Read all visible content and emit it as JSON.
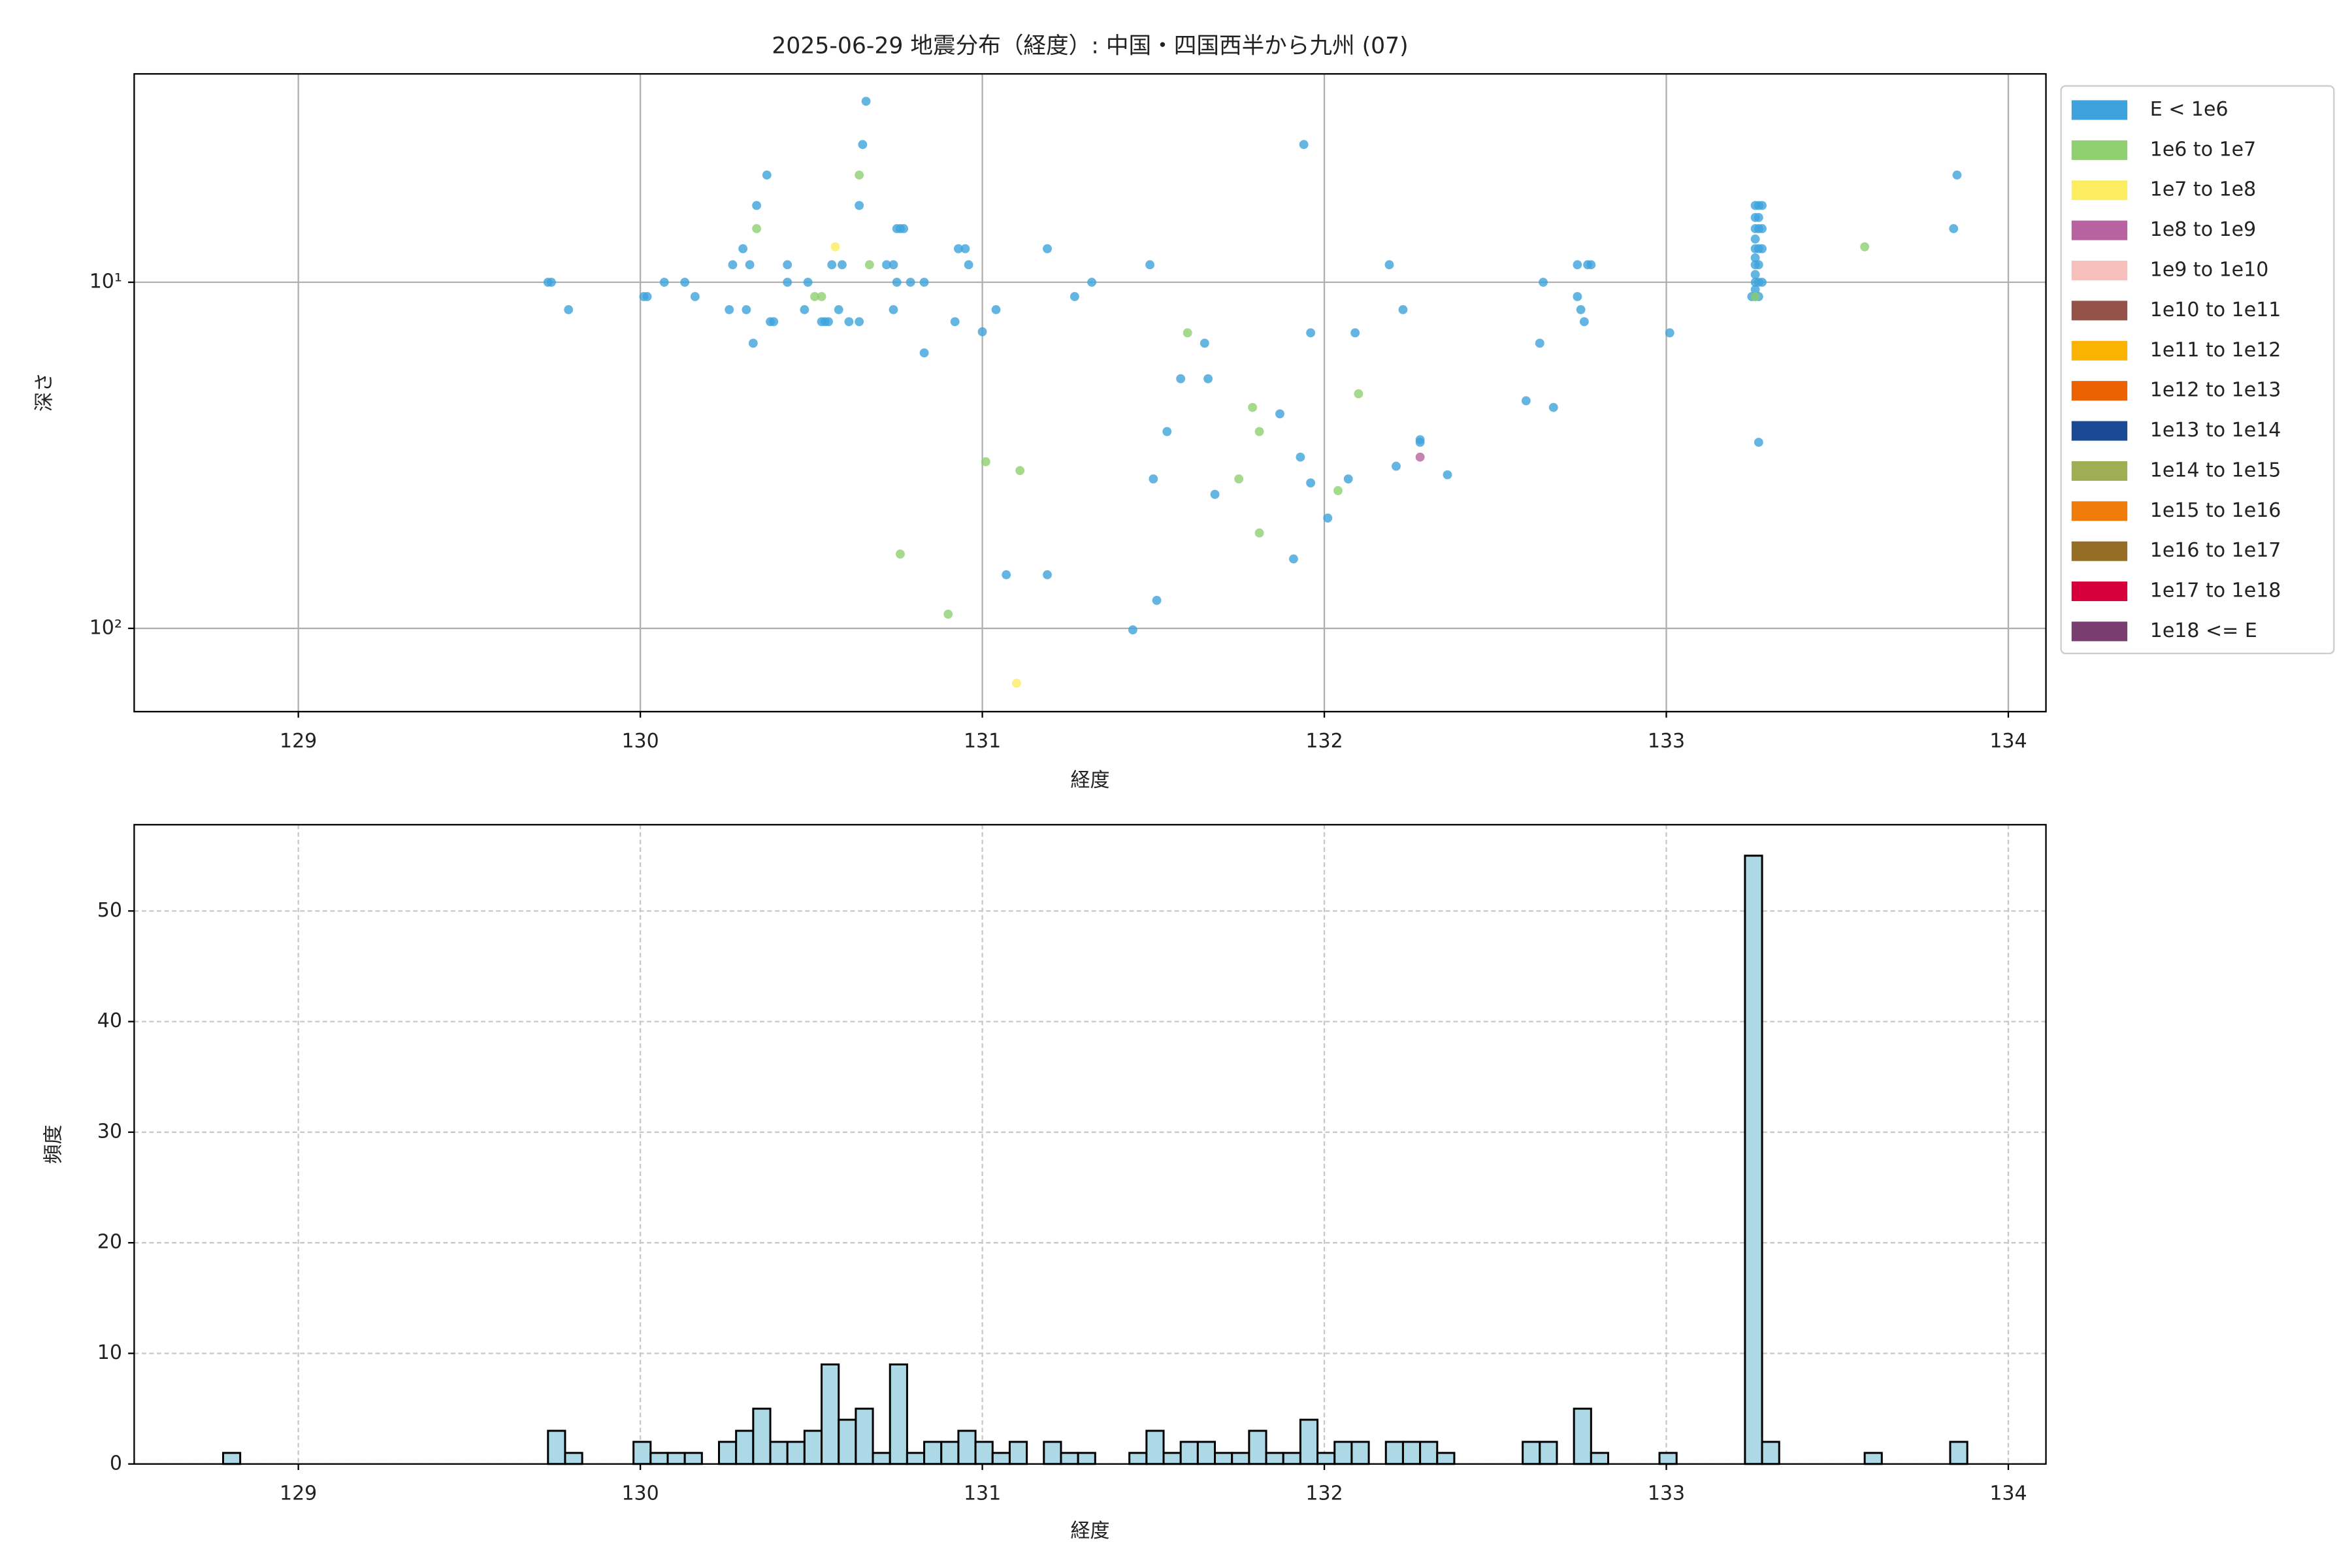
{
  "chart_data": [
    {
      "type": "scatter",
      "title": "2025-06-29 地震分布（経度）: 中国・四国西半から九州 (07)",
      "xlabel": "経度",
      "ylabel": "深さ",
      "xlim": [
        128.52,
        134.11
      ],
      "ylim": [
        174,
        2.5
      ],
      "log_y": true,
      "grid": true,
      "legend": "outside right",
      "xticks": [
        129,
        130,
        131,
        132,
        133,
        134
      ],
      "yticks": [
        {
          "value": 10,
          "label": "10¹"
        },
        {
          "value": 100,
          "label": "10²"
        }
      ],
      "series": [
        {
          "name": "E < 1e6",
          "color": "#3ea2dc",
          "x": [
            129.73,
            129.74,
            129.79,
            130.01,
            130.02,
            130.07,
            130.13,
            130.16,
            130.26,
            130.27,
            130.3,
            130.31,
            130.32,
            130.33,
            130.34,
            130.37,
            130.38,
            130.39,
            130.43,
            130.43,
            130.48,
            130.49,
            130.53,
            130.54,
            130.55,
            130.56,
            130.58,
            130.59,
            130.61,
            130.64,
            130.64,
            130.65,
            130.66,
            130.72,
            130.74,
            130.74,
            130.75,
            130.75,
            130.76,
            130.77,
            130.79,
            130.83,
            130.83,
            130.92,
            130.93,
            130.95,
            130.96,
            131,
            131.04,
            131.07,
            131.19,
            131.19,
            131.27,
            131.32,
            131.44,
            131.49,
            131.5,
            131.51,
            131.54,
            131.58,
            131.65,
            131.66,
            131.68,
            131.87,
            131.91,
            131.93,
            131.94,
            131.96,
            131.96,
            132.01,
            132.07,
            132.09,
            132.19,
            132.21,
            132.23,
            132.28,
            132.28,
            132.36,
            132.59,
            132.63,
            132.64,
            132.67,
            132.74,
            132.74,
            132.75,
            132.76,
            132.77,
            132.78,
            133.01,
            133.25,
            133.27,
            133.84,
            133.85,
            133.26,
            133.26,
            133.26,
            133.26,
            133.26,
            133.26,
            133.26,
            133.26,
            133.26,
            133.26,
            133.26,
            133.27,
            133.27,
            133.27,
            133.27,
            133.27,
            133.27,
            133.27,
            133.28,
            133.28,
            133.28,
            133.28
          ],
          "values": [
            10,
            10,
            12,
            11,
            11,
            10,
            10,
            11,
            12,
            8.9,
            8,
            12,
            8.9,
            15,
            6,
            4.9,
            13,
            13,
            8.9,
            10,
            12,
            10,
            13,
            13,
            13,
            8.9,
            12,
            8.9,
            13,
            13,
            6,
            4,
            3,
            8.9,
            12,
            8.9,
            10,
            7,
            7,
            7,
            10,
            16,
            10,
            13,
            8,
            8,
            8.9,
            13.9,
            12,
            70,
            8,
            70,
            11,
            10,
            101,
            8.9,
            37,
            83,
            27,
            19,
            15,
            19,
            41,
            24,
            63,
            32,
            4,
            14,
            38,
            48,
            37,
            14,
            8.9,
            34,
            12,
            29,
            28.5,
            36,
            22,
            15,
            10,
            23,
            11,
            8.9,
            12,
            13,
            8.9,
            8.9,
            14,
            11,
            29,
            7,
            4.9,
            6,
            6.5,
            7,
            7.5,
            8,
            8.5,
            8.9,
            9.5,
            10,
            10.5,
            11,
            6,
            6.5,
            7,
            8,
            8.9,
            10,
            11,
            6,
            7,
            8,
            10
          ]
        },
        {
          "name": "1e6 to 1e7",
          "color": "#8fcf70",
          "x": [
            130.34,
            130.51,
            130.53,
            130.64,
            130.67,
            130.76,
            130.9,
            131.01,
            131.11,
            131.6,
            131.75,
            131.79,
            131.81,
            131.81,
            132.04,
            132.1,
            133.26,
            133.58
          ],
          "values": [
            7,
            11,
            11,
            4.9,
            8.9,
            61,
            91,
            33,
            35,
            14,
            37,
            23,
            27,
            53,
            40,
            21,
            11,
            7.9
          ]
        },
        {
          "name": "1e7 to 1e8",
          "color": "#fbed5f",
          "x": [
            130.57,
            131.1
          ],
          "values": [
            7.9,
            144
          ]
        },
        {
          "name": "1e8 to 1e9",
          "color": "#b8639f",
          "x": [
            132.28
          ],
          "values": [
            32
          ]
        },
        {
          "name": "1e9 to 1e10",
          "color": "#f6bfbc",
          "x": [],
          "values": []
        },
        {
          "name": "1e10 to 1e11",
          "color": "#955249",
          "x": [],
          "values": []
        },
        {
          "name": "1e11 to 1e12",
          "color": "#fbb303",
          "x": [],
          "values": []
        },
        {
          "name": "1e12 to 1e13",
          "color": "#ec6101",
          "x": [],
          "values": []
        },
        {
          "name": "1e13 to 1e14",
          "color": "#1a4a94",
          "x": [],
          "values": []
        },
        {
          "name": "1e14 to 1e15",
          "color": "#9fae52",
          "x": [],
          "values": []
        },
        {
          "name": "1e15 to 1e16",
          "color": "#f07d0b",
          "x": [],
          "values": []
        },
        {
          "name": "1e16 to 1e17",
          "color": "#966d25",
          "x": [],
          "values": []
        },
        {
          "name": "1e17 to 1e18",
          "color": "#d7003a",
          "x": [],
          "values": []
        },
        {
          "name": "1e18 <= E",
          "color": "#7a3d70",
          "x": [],
          "values": []
        }
      ]
    },
    {
      "type": "histogram",
      "xlabel": "経度",
      "ylabel": "頻度",
      "color": "#add8e6",
      "edgecolor": "#000000",
      "grid": true,
      "xlim": [
        128.52,
        134.11
      ],
      "ylim": [
        0,
        57.8
      ],
      "xticks": [
        129,
        130,
        131,
        132,
        133,
        134
      ],
      "yticks": [
        0,
        10,
        20,
        30,
        40,
        50
      ],
      "bins": [
        128.78,
        128.83,
        128.88,
        128.93,
        128.98,
        129.03,
        129.08,
        129.13,
        129.18,
        129.23,
        129.28,
        129.33,
        129.38,
        129.43,
        129.48,
        129.53,
        129.58,
        129.63,
        129.68,
        129.73,
        129.78,
        129.83,
        129.88,
        129.93,
        129.98,
        130.03,
        130.08,
        130.13,
        130.18,
        130.23,
        130.28,
        130.33,
        130.38,
        130.43,
        130.48,
        130.53,
        130.58,
        130.63,
        130.68,
        130.73,
        130.78,
        130.83,
        130.88,
        130.93,
        130.98,
        131.03,
        131.08,
        131.13,
        131.18,
        131.23,
        131.28,
        131.33,
        131.38,
        131.43,
        131.48,
        131.53,
        131.58,
        131.63,
        131.68,
        131.73,
        131.78,
        131.83,
        131.88,
        131.93,
        131.98,
        132.03,
        132.08,
        132.13,
        132.18,
        132.23,
        132.28,
        132.33,
        132.38,
        132.43,
        132.48,
        132.53,
        132.58,
        132.63,
        132.68,
        132.73,
        132.78,
        132.83,
        132.88,
        132.93,
        132.98,
        133.03,
        133.08,
        133.13,
        133.18,
        133.23,
        133.28,
        133.33,
        133.38,
        133.43,
        133.48,
        133.53,
        133.58,
        133.63,
        133.68,
        133.73,
        133.78,
        133.83,
        133.88
      ],
      "values": [
        1,
        0,
        0,
        0,
        0,
        0,
        0,
        0,
        0,
        0,
        0,
        0,
        0,
        0,
        0,
        0,
        0,
        0,
        0,
        3,
        1,
        0,
        0,
        0,
        2,
        1,
        1,
        1,
        0,
        2,
        3,
        5,
        2,
        2,
        3,
        9,
        4,
        5,
        1,
        9,
        1,
        2,
        2,
        3,
        2,
        1,
        2,
        0,
        2,
        1,
        1,
        0,
        0,
        1,
        3,
        1,
        2,
        2,
        1,
        1,
        3,
        1,
        1,
        4,
        1,
        2,
        2,
        0,
        2,
        2,
        2,
        1,
        0,
        0,
        0,
        0,
        2,
        2,
        0,
        5,
        1,
        0,
        0,
        0,
        1,
        0,
        0,
        0,
        0,
        55,
        2,
        0,
        0,
        0,
        0,
        0,
        1,
        0,
        0,
        0,
        0,
        2
      ]
    }
  ]
}
